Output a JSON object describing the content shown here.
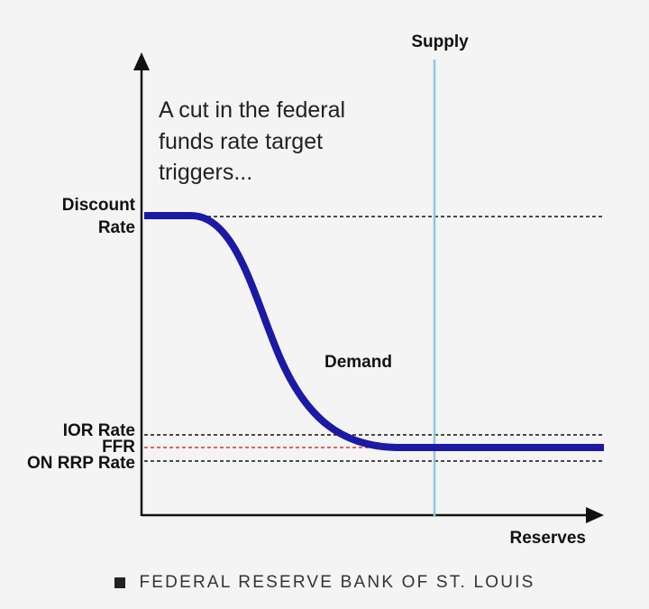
{
  "diagram": {
    "annotation_lines": [
      "A cut in the federal",
      "funds rate target",
      "triggers..."
    ],
    "supply_label": "Supply",
    "demand_label": "Demand",
    "x_axis_label": "Reserves",
    "rate_labels": {
      "discount_rate_line1": "Discount",
      "discount_rate_line2": "Rate",
      "ior_rate": "IOR Rate",
      "ffr": "FFR",
      "on_rrp_rate": "ON RRP Rate"
    },
    "colors": {
      "demand_curve": "#1a1aa6",
      "supply_line": "#8ec8dc",
      "ffr_line": "#e03030",
      "reference_lines": "#111111",
      "axes": "#111111"
    }
  },
  "footer": {
    "source_text": "FEDERAL RESERVE BANK OF ST. LOUIS"
  }
}
